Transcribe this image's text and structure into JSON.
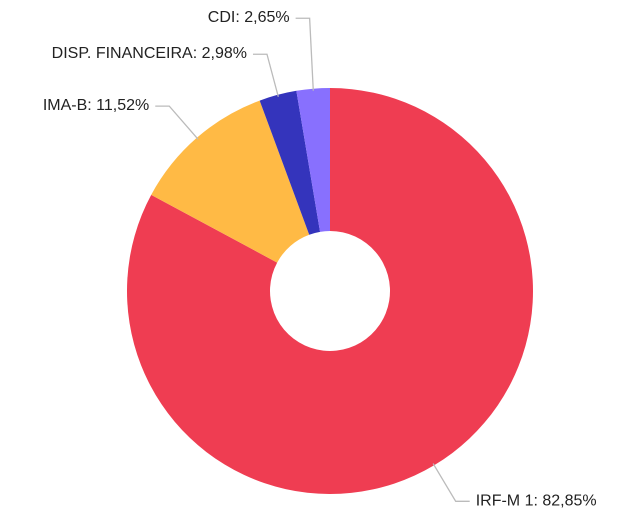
{
  "chart_data": {
    "type": "pie",
    "donut": true,
    "categories": [
      "IRF-M 1",
      "IMA-B",
      "DISP. FINANCEIRA",
      "CDI"
    ],
    "values": [
      82.85,
      11.52,
      2.98,
      2.65
    ],
    "value_labels": [
      "82,85%",
      "11,52%",
      "2,98%",
      "2,65%"
    ],
    "label_separator": ": ",
    "colors": [
      "#ef3d52",
      "#ffba45",
      "#3434bc",
      "#8870fe"
    ]
  }
}
